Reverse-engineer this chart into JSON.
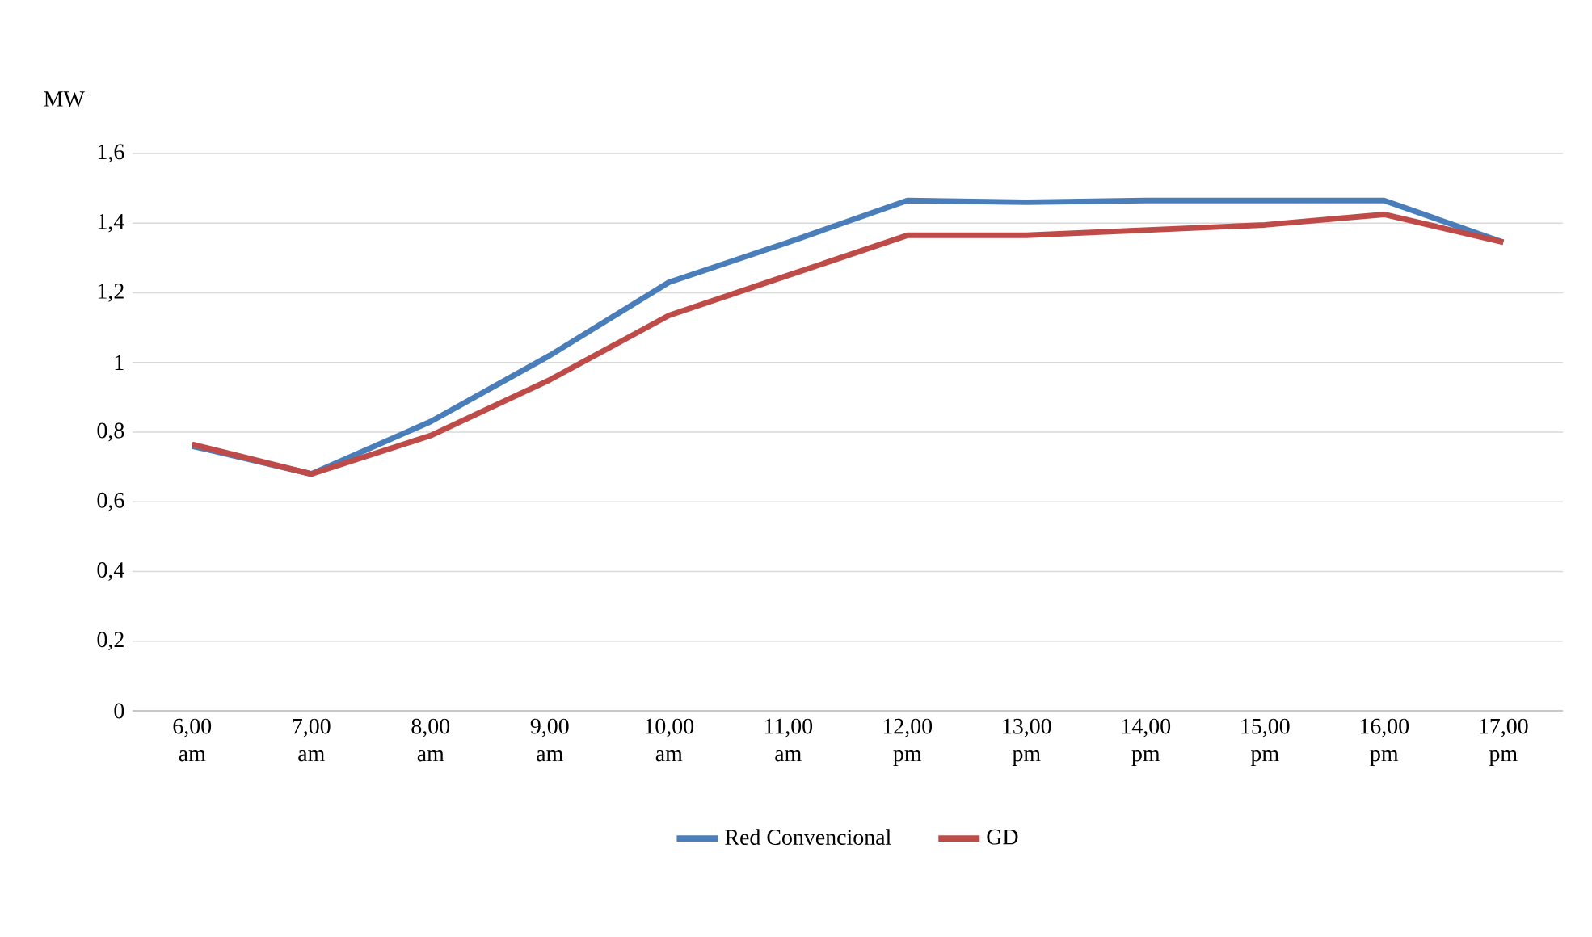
{
  "chart_data": {
    "type": "line",
    "ylabel": "MW",
    "categories": [
      "6,00 am",
      "7,00 am",
      "8,00 am",
      "9,00 am",
      "10,00 am",
      "11,00 am",
      "12,00 pm",
      "13,00 pm",
      "14,00 pm",
      "15,00 pm",
      "16,00 pm",
      "17,00 pm"
    ],
    "series": [
      {
        "name": "Red Convencional",
        "color": "#4a7ebb",
        "values": [
          0.76,
          0.68,
          0.83,
          1.02,
          1.23,
          1.345,
          1.465,
          1.46,
          1.465,
          1.465,
          1.465,
          1.345
        ]
      },
      {
        "name": "GD",
        "color": "#be4b48",
        "values": [
          0.765,
          0.68,
          0.79,
          0.95,
          1.135,
          1.25,
          1.365,
          1.365,
          1.38,
          1.395,
          1.425,
          1.345
        ]
      }
    ],
    "ylim": [
      0,
      1.6
    ],
    "yticks": [
      0,
      {
        "value": 0.2,
        "label": "0,2"
      },
      {
        "value": 0.4,
        "label": "0,4"
      },
      {
        "value": 0.6,
        "label": "0,6"
      },
      {
        "value": 0.8,
        "label": "0,8"
      },
      1,
      {
        "value": 1.2,
        "label": "1,2"
      },
      {
        "value": 1.4,
        "label": "1,4"
      },
      {
        "value": 1.6,
        "label": "1,6"
      }
    ],
    "grid": "y",
    "legend": "bottom",
    "marker": "none",
    "line_style": "solid"
  }
}
